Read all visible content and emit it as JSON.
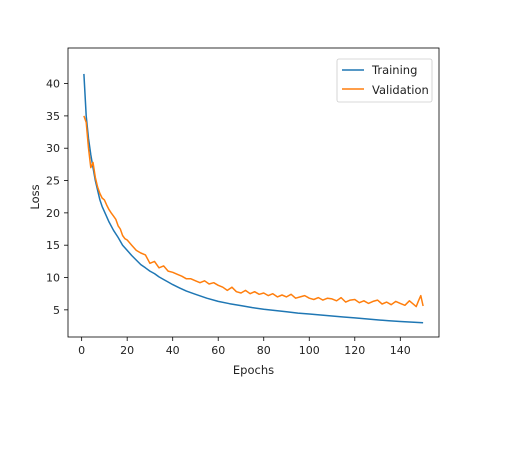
{
  "chart_data": {
    "type": "line",
    "title": "",
    "xlabel": "Epochs",
    "ylabel": "Loss",
    "xlim": [
      -6,
      157
    ],
    "ylim": [
      0.8,
      45.5
    ],
    "xticks": [
      0,
      20,
      40,
      60,
      80,
      100,
      120,
      140
    ],
    "yticks": [
      5,
      10,
      15,
      20,
      25,
      30,
      35,
      40
    ],
    "grid": false,
    "legend_position": "top-right",
    "series": [
      {
        "name": "Training",
        "color": "#1f77b4",
        "x": [
          1,
          2,
          3,
          4,
          5,
          6,
          7,
          8,
          9,
          10,
          12,
          14,
          16,
          18,
          20,
          22,
          24,
          26,
          28,
          30,
          32,
          34,
          36,
          38,
          40,
          43,
          46,
          50,
          55,
          60,
          65,
          70,
          75,
          80,
          85,
          90,
          95,
          100,
          105,
          110,
          115,
          120,
          125,
          130,
          135,
          140,
          145,
          150
        ],
        "y": [
          41.5,
          35.0,
          31.5,
          29.0,
          27.0,
          25.0,
          23.5,
          22.0,
          21.0,
          20.2,
          18.6,
          17.3,
          16.2,
          15.0,
          14.2,
          13.4,
          12.7,
          12.0,
          11.5,
          11.0,
          10.6,
          10.1,
          9.7,
          9.3,
          8.9,
          8.4,
          7.9,
          7.4,
          6.8,
          6.3,
          5.95,
          5.65,
          5.35,
          5.1,
          4.9,
          4.7,
          4.5,
          4.35,
          4.2,
          4.05,
          3.9,
          3.75,
          3.6,
          3.45,
          3.3,
          3.2,
          3.1,
          3.0
        ]
      },
      {
        "name": "Validation",
        "color": "#ff7f0e",
        "x": [
          1,
          2,
          3,
          4,
          5,
          6,
          7,
          8,
          9,
          10,
          11,
          12,
          13,
          14,
          15,
          16,
          17,
          18,
          19,
          20,
          22,
          24,
          26,
          28,
          30,
          32,
          34,
          36,
          38,
          40,
          42,
          44,
          46,
          48,
          50,
          52,
          54,
          56,
          58,
          60,
          62,
          64,
          66,
          68,
          70,
          72,
          74,
          76,
          78,
          80,
          82,
          84,
          86,
          88,
          90,
          92,
          94,
          96,
          98,
          100,
          102,
          104,
          106,
          108,
          110,
          112,
          114,
          116,
          118,
          120,
          122,
          124,
          126,
          128,
          130,
          132,
          134,
          136,
          138,
          140,
          142,
          144,
          146,
          147,
          148,
          149,
          150
        ],
        "y": [
          35.0,
          34.0,
          30.0,
          27.0,
          27.8,
          25.5,
          24.0,
          23.0,
          22.3,
          22.0,
          21.2,
          20.5,
          20.0,
          19.5,
          19.0,
          18.0,
          17.5,
          16.5,
          16.0,
          15.8,
          15.0,
          14.2,
          13.8,
          13.5,
          12.2,
          12.5,
          11.5,
          11.8,
          11.0,
          10.8,
          10.5,
          10.2,
          9.8,
          9.8,
          9.5,
          9.2,
          9.5,
          9.0,
          9.2,
          8.8,
          8.5,
          8.0,
          8.5,
          7.8,
          7.6,
          8.0,
          7.5,
          7.8,
          7.4,
          7.6,
          7.2,
          7.5,
          7.0,
          7.3,
          7.0,
          7.4,
          6.8,
          7.0,
          7.2,
          6.8,
          6.6,
          6.9,
          6.5,
          6.8,
          6.7,
          6.4,
          6.9,
          6.2,
          6.5,
          6.6,
          6.1,
          6.4,
          6.0,
          6.3,
          6.5,
          5.9,
          6.2,
          5.8,
          6.3,
          6.0,
          5.7,
          6.4,
          5.8,
          5.5,
          6.4,
          7.2,
          5.6
        ]
      }
    ]
  }
}
